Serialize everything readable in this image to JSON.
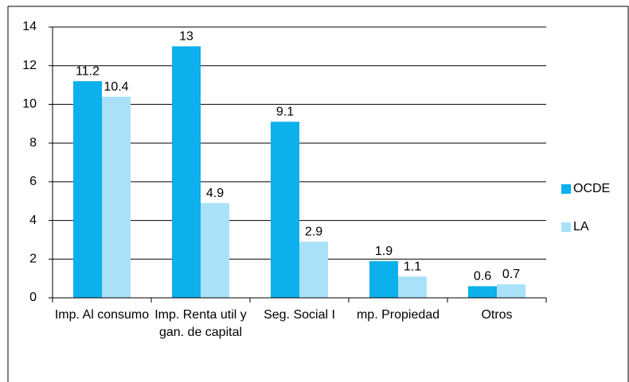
{
  "chart_data": {
    "type": "bar",
    "categories": [
      "Imp. Al consumo",
      "Imp. Renta util y gan. de capital",
      "Seg. Social I",
      "mp. Propiedad",
      "Otros"
    ],
    "series": [
      {
        "name": "OCDE",
        "color": "#0cb0ec",
        "values": [
          11.2,
          13,
          9.1,
          1.9,
          0.6
        ]
      },
      {
        "name": "LA",
        "color": "#a9e1f8",
        "values": [
          10.4,
          4.9,
          2.9,
          1.1,
          0.7
        ]
      }
    ],
    "ylim": [
      0,
      14
    ],
    "yticks": [
      0,
      2,
      4,
      6,
      8,
      10,
      12,
      14
    ],
    "grid": true,
    "legend": "right"
  }
}
